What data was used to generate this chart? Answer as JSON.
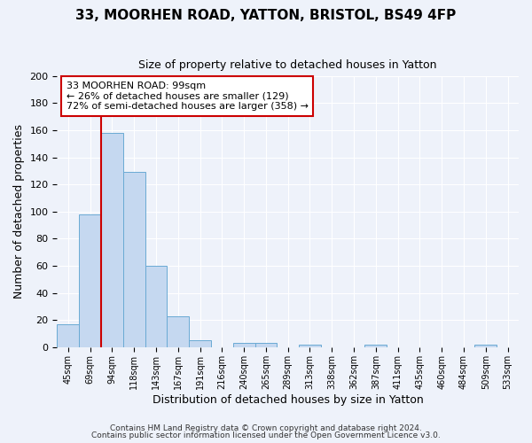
{
  "title1": "33, MOORHEN ROAD, YATTON, BRISTOL, BS49 4FP",
  "title2": "Size of property relative to detached houses in Yatton",
  "xlabel": "Distribution of detached houses by size in Yatton",
  "ylabel": "Number of detached properties",
  "bin_labels": [
    "45sqm",
    "69sqm",
    "94sqm",
    "118sqm",
    "143sqm",
    "167sqm",
    "191sqm",
    "216sqm",
    "240sqm",
    "265sqm",
    "289sqm",
    "313sqm",
    "338sqm",
    "362sqm",
    "387sqm",
    "411sqm",
    "435sqm",
    "460sqm",
    "484sqm",
    "509sqm",
    "533sqm"
  ],
  "bar_values": [
    17,
    98,
    158,
    129,
    60,
    23,
    5,
    0,
    3,
    3,
    0,
    2,
    0,
    0,
    2,
    0,
    0,
    0,
    0,
    2,
    0
  ],
  "bar_color": "#c5d8f0",
  "bar_edge_color": "#6aaad4",
  "ylim": [
    0,
    200
  ],
  "yticks": [
    0,
    20,
    40,
    60,
    80,
    100,
    120,
    140,
    160,
    180,
    200
  ],
  "red_line_bin_index": 2,
  "annotation_title": "33 MOORHEN ROAD: 99sqm",
  "annotation_line1": "← 26% of detached houses are smaller (129)",
  "annotation_line2": "72% of semi-detached houses are larger (358) →",
  "footer1": "Contains HM Land Registry data © Crown copyright and database right 2024.",
  "footer2": "Contains public sector information licensed under the Open Government Licence v3.0.",
  "bg_color": "#eef2fa",
  "plot_bg_color": "#eef2fa",
  "grid_color": "#ffffff",
  "red_line_color": "#cc0000"
}
